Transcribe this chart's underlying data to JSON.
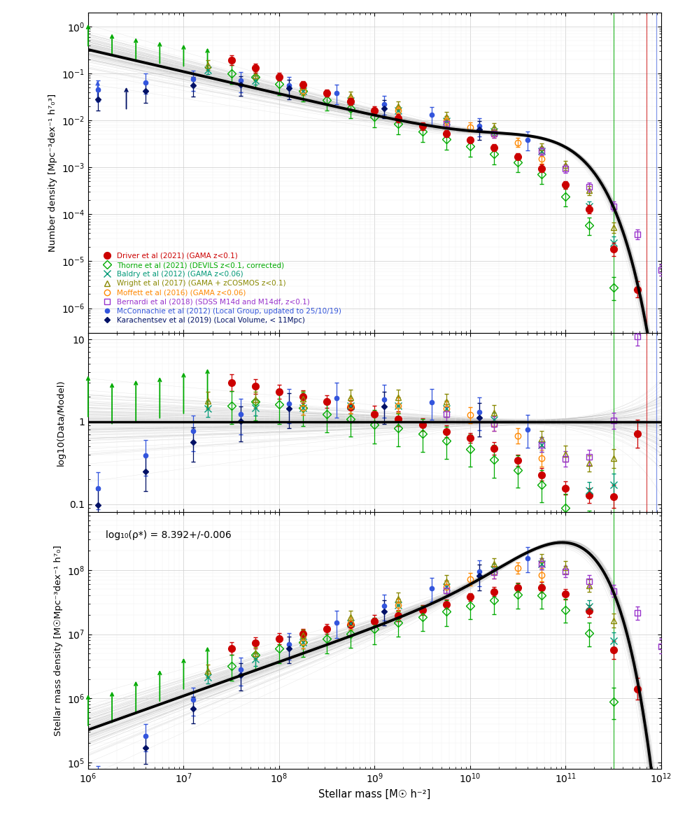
{
  "xlabel": "Stellar mass [M☉ h⁻²]",
  "ylabel1": "Number density [Mpc⁻³dex⁻¹ h⁷₀³]",
  "ylabel2": "log10(Data/Model)",
  "ylabel3": "Stellar mass density [M☉Mpc⁻³dex⁻¹ h⁷₀]",
  "rho_annotation": "log₁₀(ρ*) = 8.392+/-0.006",
  "xmin": 1000000.0,
  "xmax": 1000000000000.0,
  "smf_ylim": [
    3e-07,
    2.0
  ],
  "ratio_ylim": [
    0.08,
    12
  ],
  "smd_ylim": [
    80000.0,
    800000000.0
  ],
  "colors": {
    "driver": "#cc0000",
    "thorne": "#00aa00",
    "baldry": "#009977",
    "wright": "#888800",
    "moffett": "#ff8800",
    "bernardi": "#9933cc",
    "mcconnachie": "#3355dd",
    "karachentsev": "#001166",
    "model": "#000000"
  },
  "legend_entries": [
    {
      "label": "Driver et al (2021) (GAMA z<0.1)",
      "color": "#cc0000"
    },
    {
      "label": "Thorne et al (2021) (DEVILS z<0.1, corrected)",
      "color": "#00aa00"
    },
    {
      "label": "Baldry et al (2012) (GAMA z<0.06)",
      "color": "#009977"
    },
    {
      "label": "Wright et al (2017) (GAMA + zCOSMOS z<0.1)",
      "color": "#888800"
    },
    {
      "label": "Moffett et al (2016) (GAMA z<0.06)",
      "color": "#ff8800"
    },
    {
      "label": "Bernardi et al (2018) (SDSS M14d and M14df, z<0.1)",
      "color": "#9933cc"
    },
    {
      "label": "McConnachie et al (2012) (Local Group, updated to 25/10/19)",
      "color": "#3355dd"
    },
    {
      "label": "Karachentsev et al (2019) (Local Volume, < 11Mpc)",
      "color": "#001166"
    }
  ],
  "driver_logM": [
    7.5,
    7.75,
    8.0,
    8.25,
    8.5,
    8.75,
    9.0,
    9.25,
    9.5,
    9.75,
    10.0,
    10.25,
    10.5,
    10.75,
    11.0,
    11.25,
    11.5,
    11.75
  ],
  "driver_phi": [
    0.19,
    0.13,
    0.085,
    0.057,
    0.038,
    0.025,
    0.016,
    0.011,
    0.0075,
    0.0052,
    0.0038,
    0.0026,
    0.0017,
    0.00095,
    0.00042,
    0.00013,
    1.8e-05,
    2.5e-06
  ],
  "driver_phi_lo": [
    0.04,
    0.025,
    0.015,
    0.009,
    0.006,
    0.004,
    0.003,
    0.002,
    0.0012,
    0.0008,
    0.0005,
    0.0004,
    0.00025,
    0.00015,
    7e-05,
    2.5e-05,
    5e-06,
    8e-07
  ],
  "driver_phi_hi": [
    0.05,
    0.03,
    0.018,
    0.011,
    0.007,
    0.005,
    0.004,
    0.0025,
    0.0015,
    0.001,
    0.0006,
    0.0005,
    0.0003,
    0.0002,
    9e-05,
    3e-05,
    7e-06,
    1.2e-06
  ],
  "thorne_logM": [
    6.0,
    6.25,
    6.5,
    6.75,
    7.0,
    7.25,
    7.5,
    7.75,
    8.0,
    8.25,
    8.5,
    8.75,
    9.0,
    9.25,
    9.5,
    9.75,
    10.0,
    10.25,
    10.5,
    10.75,
    11.0,
    11.25,
    11.5
  ],
  "thorne_phi": [
    0.35,
    0.22,
    0.18,
    0.15,
    0.13,
    0.11,
    0.1,
    0.085,
    0.06,
    0.042,
    0.027,
    0.018,
    0.012,
    0.0085,
    0.0058,
    0.004,
    0.0028,
    0.0019,
    0.0013,
    0.00072,
    0.00024,
    5.8e-05,
    2.8e-06
  ],
  "thorne_phi_lo": [
    0.15,
    0.09,
    0.07,
    0.06,
    0.05,
    0.045,
    0.04,
    0.035,
    0.025,
    0.017,
    0.011,
    0.007,
    0.005,
    0.0034,
    0.0023,
    0.0016,
    0.0011,
    0.00075,
    0.0005,
    0.00028,
    9e-05,
    2.2e-05,
    1.3e-06
  ],
  "thorne_phi_hi": [
    0.2,
    0.12,
    0.09,
    0.08,
    0.065,
    0.055,
    0.05,
    0.044,
    0.032,
    0.022,
    0.014,
    0.009,
    0.006,
    0.0042,
    0.003,
    0.002,
    0.0014,
    0.00095,
    0.00065,
    0.00036,
    0.00012,
    2.8e-05,
    1.8e-06
  ],
  "baldry_logM": [
    7.25,
    7.75,
    8.25,
    8.75,
    9.25,
    9.75,
    10.25,
    10.75,
    11.25,
    11.5
  ],
  "baldry_phi": [
    0.12,
    0.072,
    0.042,
    0.026,
    0.016,
    0.0098,
    0.0058,
    0.0022,
    0.00015,
    2.5e-05
  ],
  "baldry_phi_lo": [
    0.025,
    0.015,
    0.008,
    0.005,
    0.003,
    0.002,
    0.001,
    0.0004,
    3e-05,
    7e-06
  ],
  "baldry_phi_hi": [
    0.03,
    0.018,
    0.01,
    0.006,
    0.004,
    0.0025,
    0.0013,
    0.0005,
    4e-05,
    9e-06
  ],
  "wright_logM": [
    7.25,
    7.75,
    8.25,
    8.75,
    9.25,
    9.75,
    10.25,
    10.75,
    11.0,
    11.25,
    11.5
  ],
  "wright_phi": [
    0.15,
    0.09,
    0.054,
    0.033,
    0.02,
    0.012,
    0.007,
    0.0026,
    0.0011,
    0.00032,
    5.2e-05
  ],
  "wright_phi_lo": [
    0.03,
    0.018,
    0.01,
    0.006,
    0.004,
    0.0025,
    0.0014,
    0.0005,
    0.00022,
    6.5e-05,
    1.2e-05
  ],
  "wright_phi_hi": [
    0.04,
    0.022,
    0.013,
    0.008,
    0.005,
    0.003,
    0.0017,
    0.0006,
    0.00027,
    8e-05,
    1.5e-05
  ],
  "moffett_logM": [
    8.25,
    8.75,
    9.25,
    9.75,
    10.0,
    10.25,
    10.5,
    10.75
  ],
  "moffett_phi": [
    0.042,
    0.026,
    0.016,
    0.0098,
    0.0072,
    0.0052,
    0.0034,
    0.0015
  ],
  "moffett_phi_lo": [
    0.008,
    0.005,
    0.003,
    0.002,
    0.0014,
    0.001,
    0.00065,
    0.0003
  ],
  "moffett_phi_hi": [
    0.01,
    0.006,
    0.004,
    0.0025,
    0.0018,
    0.0013,
    0.0008,
    0.0004
  ],
  "bernardi_logM": [
    9.75,
    10.25,
    10.75,
    11.0,
    11.25,
    11.5,
    11.75,
    12.0
  ],
  "bernardi_phi": [
    0.0085,
    0.0052,
    0.0022,
    0.00095,
    0.00038,
    0.00015,
    3.8e-05,
    6.5e-06
  ],
  "bernardi_phi_lo": [
    0.0015,
    0.001,
    0.0004,
    0.00018,
    7.5e-05,
    3e-05,
    8.5e-06,
    1.5e-06
  ],
  "bernardi_phi_hi": [
    0.0018,
    0.0012,
    0.0005,
    0.00022,
    9e-05,
    3.8e-05,
    1e-05,
    2e-06
  ],
  "mcconn_logM": [
    6.1,
    6.6,
    7.1,
    7.6,
    8.1,
    8.6,
    9.1,
    9.6,
    10.1,
    10.6
  ],
  "mcconn_phi": [
    0.045,
    0.065,
    0.075,
    0.07,
    0.055,
    0.038,
    0.022,
    0.013,
    0.0075,
    0.0038
  ],
  "mcconn_phi_lo": [
    0.02,
    0.028,
    0.032,
    0.03,
    0.023,
    0.016,
    0.009,
    0.005,
    0.003,
    0.0015
  ],
  "mcconn_phi_hi": [
    0.025,
    0.035,
    0.04,
    0.038,
    0.028,
    0.02,
    0.011,
    0.006,
    0.0038,
    0.0019
  ],
  "kara_logM": [
    6.1,
    6.6,
    7.1,
    7.6,
    8.1,
    9.1,
    10.1
  ],
  "kara_phi": [
    0.028,
    0.042,
    0.055,
    0.058,
    0.048,
    0.018,
    0.0065
  ],
  "kara_phi_lo": [
    0.012,
    0.018,
    0.023,
    0.025,
    0.02,
    0.007,
    0.0027
  ],
  "kara_phi_hi": [
    0.015,
    0.022,
    0.028,
    0.03,
    0.025,
    0.009,
    0.0033
  ],
  "phi1": 0.00396,
  "phi2": 0.00079,
  "logM_star": 10.78,
  "alpha1": -0.35,
  "alpha2": -1.47,
  "vline_thorne": 11.5,
  "vline_driver": 11.85,
  "vline_mcconn": 11.95,
  "vline_bernardi": 11.75
}
